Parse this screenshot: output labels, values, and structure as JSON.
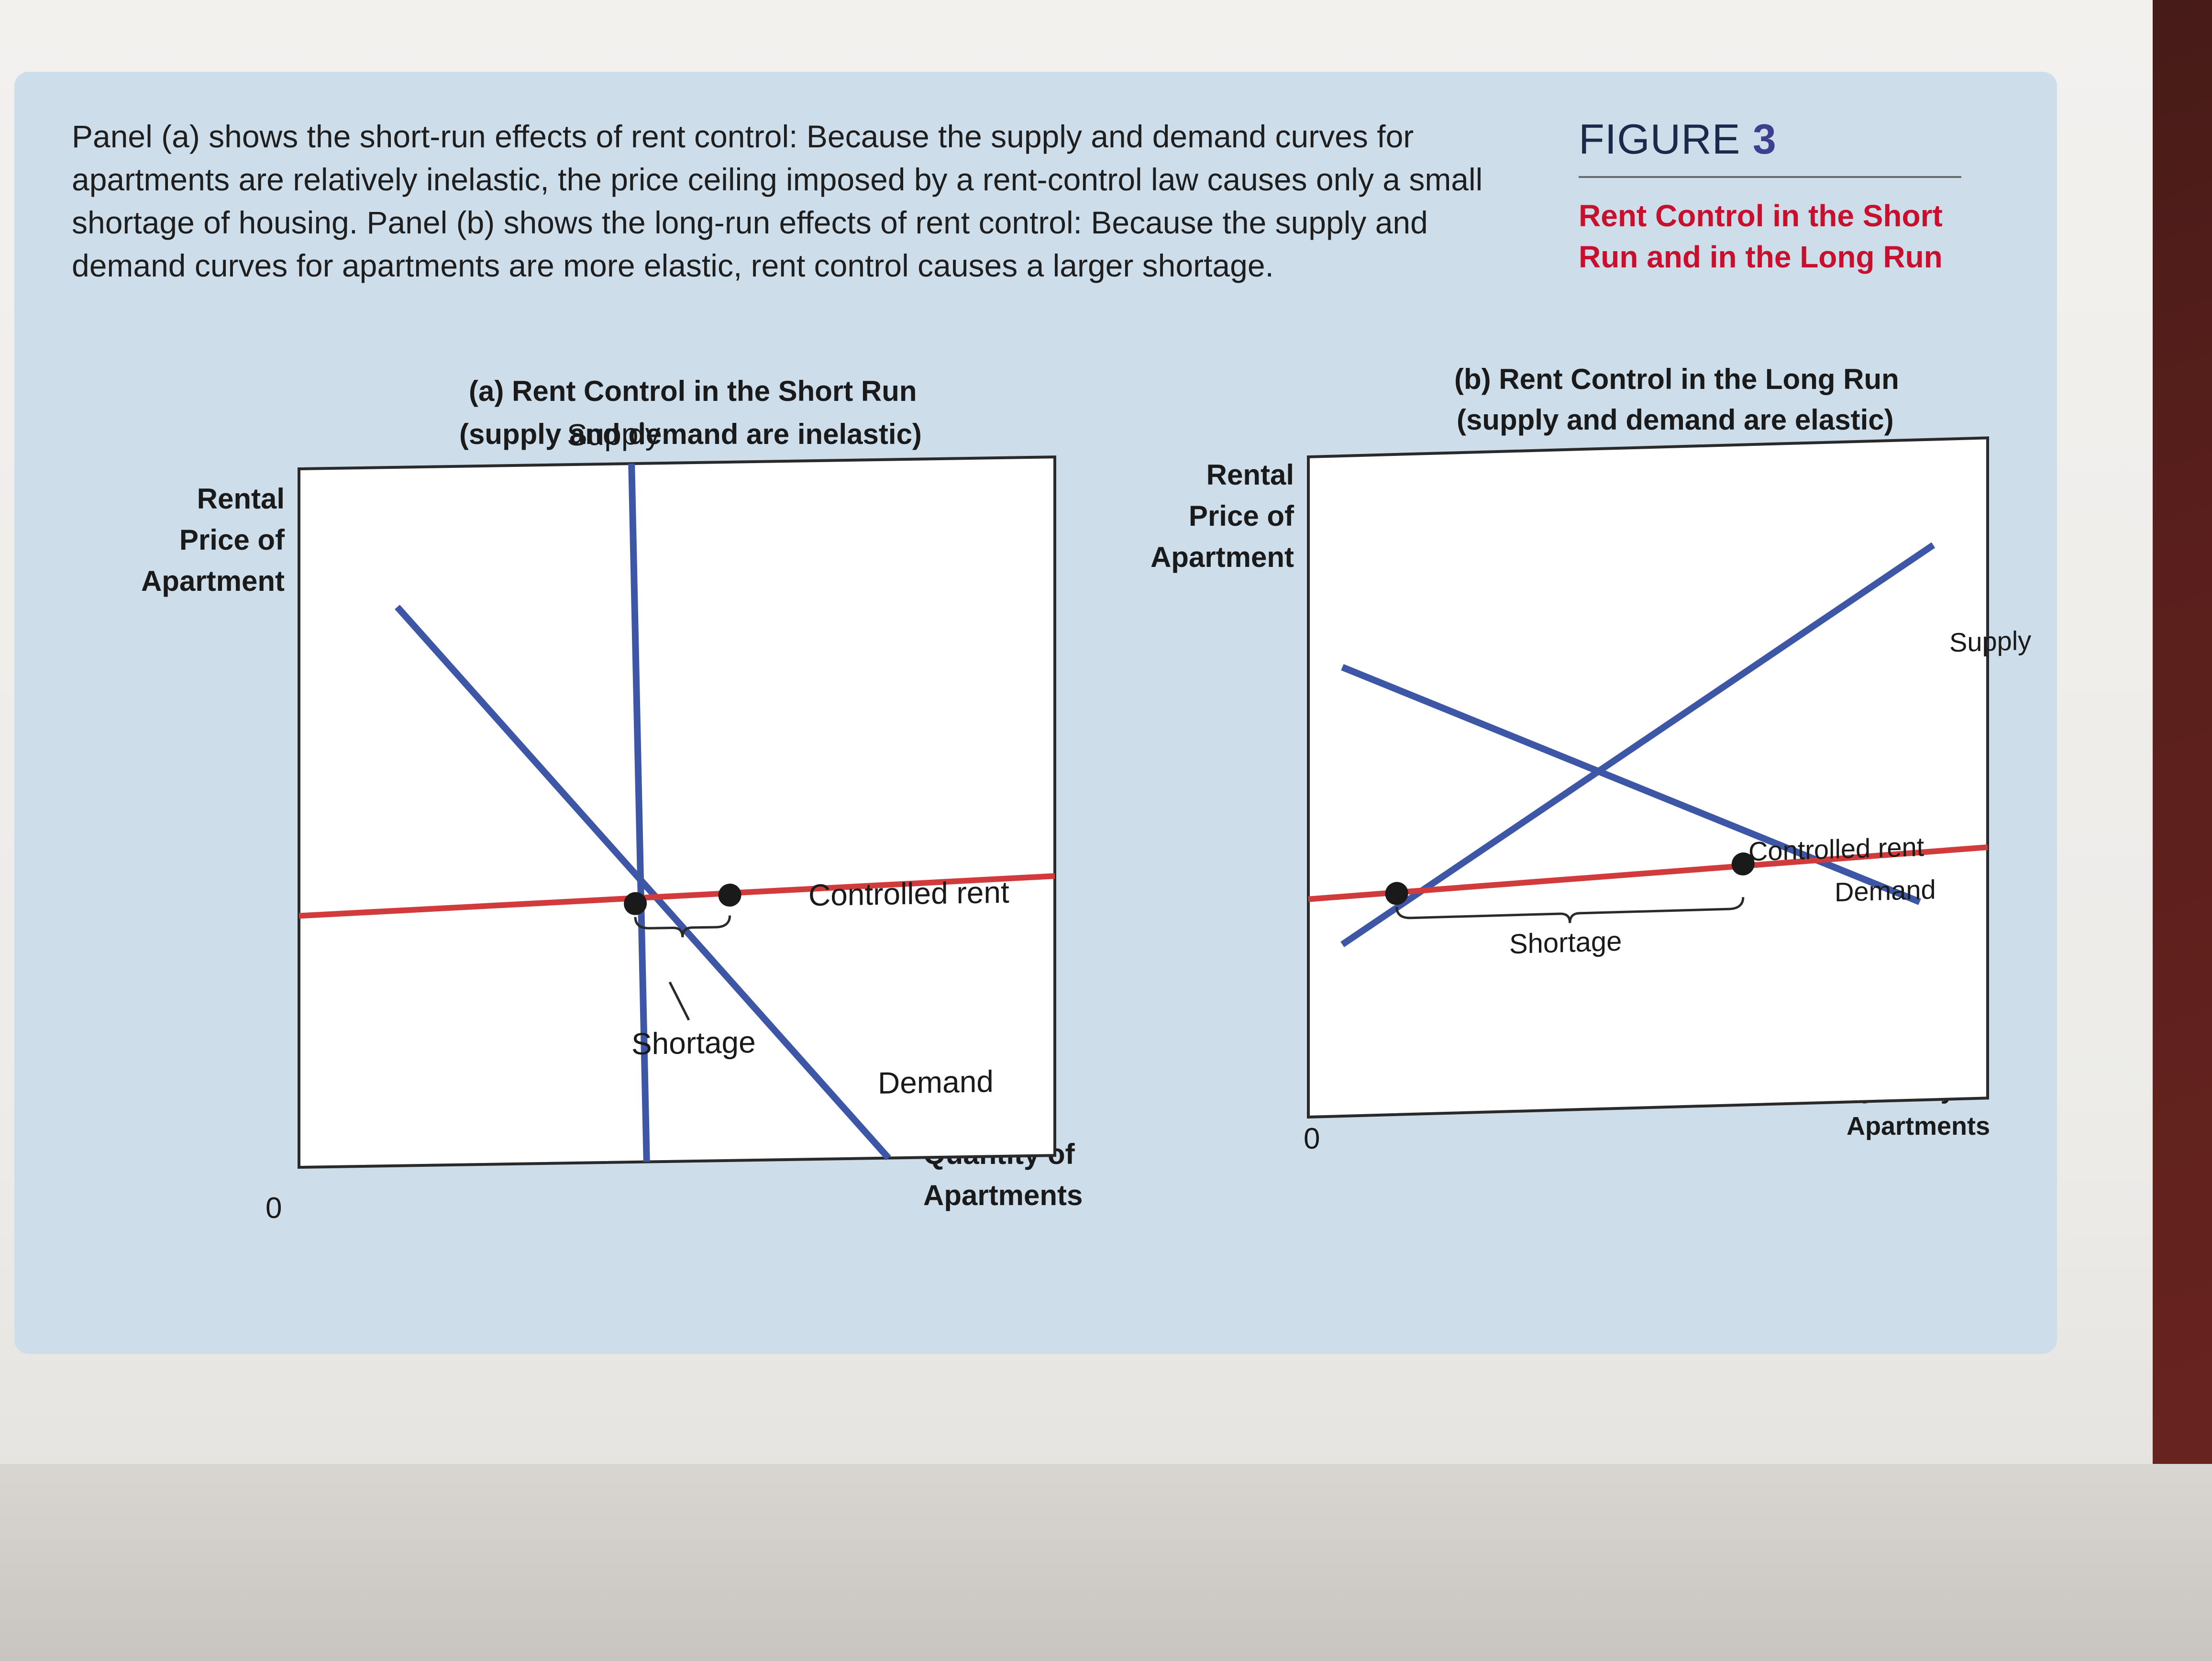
{
  "caption": "Panel (a) shows the short-run effects of rent control: Because the supply and demand curves for apartments are relatively inelastic, the price ceiling imposed by a rent-control law causes only a small shortage of housing. Panel (b) shows the long-run effects of rent control: Because the supply and demand curves for apartments are more elastic, rent control causes a larger shortage.",
  "figure": {
    "label_word": "FIGURE",
    "label_number": "3",
    "title": "Rent Control in the Short Run and in the Long Run"
  },
  "colors": {
    "supply_demand": "#3d56a6",
    "controlled_rent": "#d23b3b",
    "panel": "#cddde9"
  },
  "chart_data": [
    {
      "type": "line",
      "title": "(a) Rent Control in the Short Run",
      "subtitle": "(supply and demand are inelastic)",
      "ylabel": "Rental Price of Apartment",
      "xlabel": "Quantity of Apartments",
      "origin_label": "0",
      "series": [
        {
          "name": "Supply",
          "x": [
            4.4,
            4.6
          ],
          "y": [
            10.0,
            0.0
          ]
        },
        {
          "name": "Demand",
          "x": [
            1.3,
            7.8
          ],
          "y": [
            8.0,
            0.0
          ]
        },
        {
          "name": "Controlled rent",
          "x": [
            0,
            10
          ],
          "y": [
            3.6,
            4.0
          ]
        }
      ],
      "equilibrium_points": [
        {
          "x": 4.45,
          "y": 3.7
        },
        {
          "x": 5.7,
          "y": 3.8
        }
      ],
      "annotation": "Shortage",
      "xlim": [
        0,
        10
      ],
      "ylim": [
        0,
        10
      ]
    },
    {
      "type": "line",
      "title": "(b) Rent Control in the Long Run",
      "subtitle": "(supply and demand are elastic)",
      "ylabel": "Rental Price of Apartment",
      "xlabel": "Quantity of Apartments",
      "origin_label": "0",
      "series": [
        {
          "name": "Supply",
          "x": [
            0.5,
            9.2
          ],
          "y": [
            2.6,
            8.4
          ]
        },
        {
          "name": "Demand",
          "x": [
            0.5,
            9.0
          ],
          "y": [
            6.8,
            3.0
          ]
        },
        {
          "name": "Controlled rent",
          "x": [
            0,
            10
          ],
          "y": [
            3.3,
            3.8
          ]
        }
      ],
      "equilibrium_points": [
        {
          "x": 1.3,
          "y": 3.35
        },
        {
          "x": 6.4,
          "y": 3.65
        }
      ],
      "annotation": "Shortage",
      "xlim": [
        0,
        10
      ],
      "ylim": [
        0,
        10
      ]
    }
  ]
}
